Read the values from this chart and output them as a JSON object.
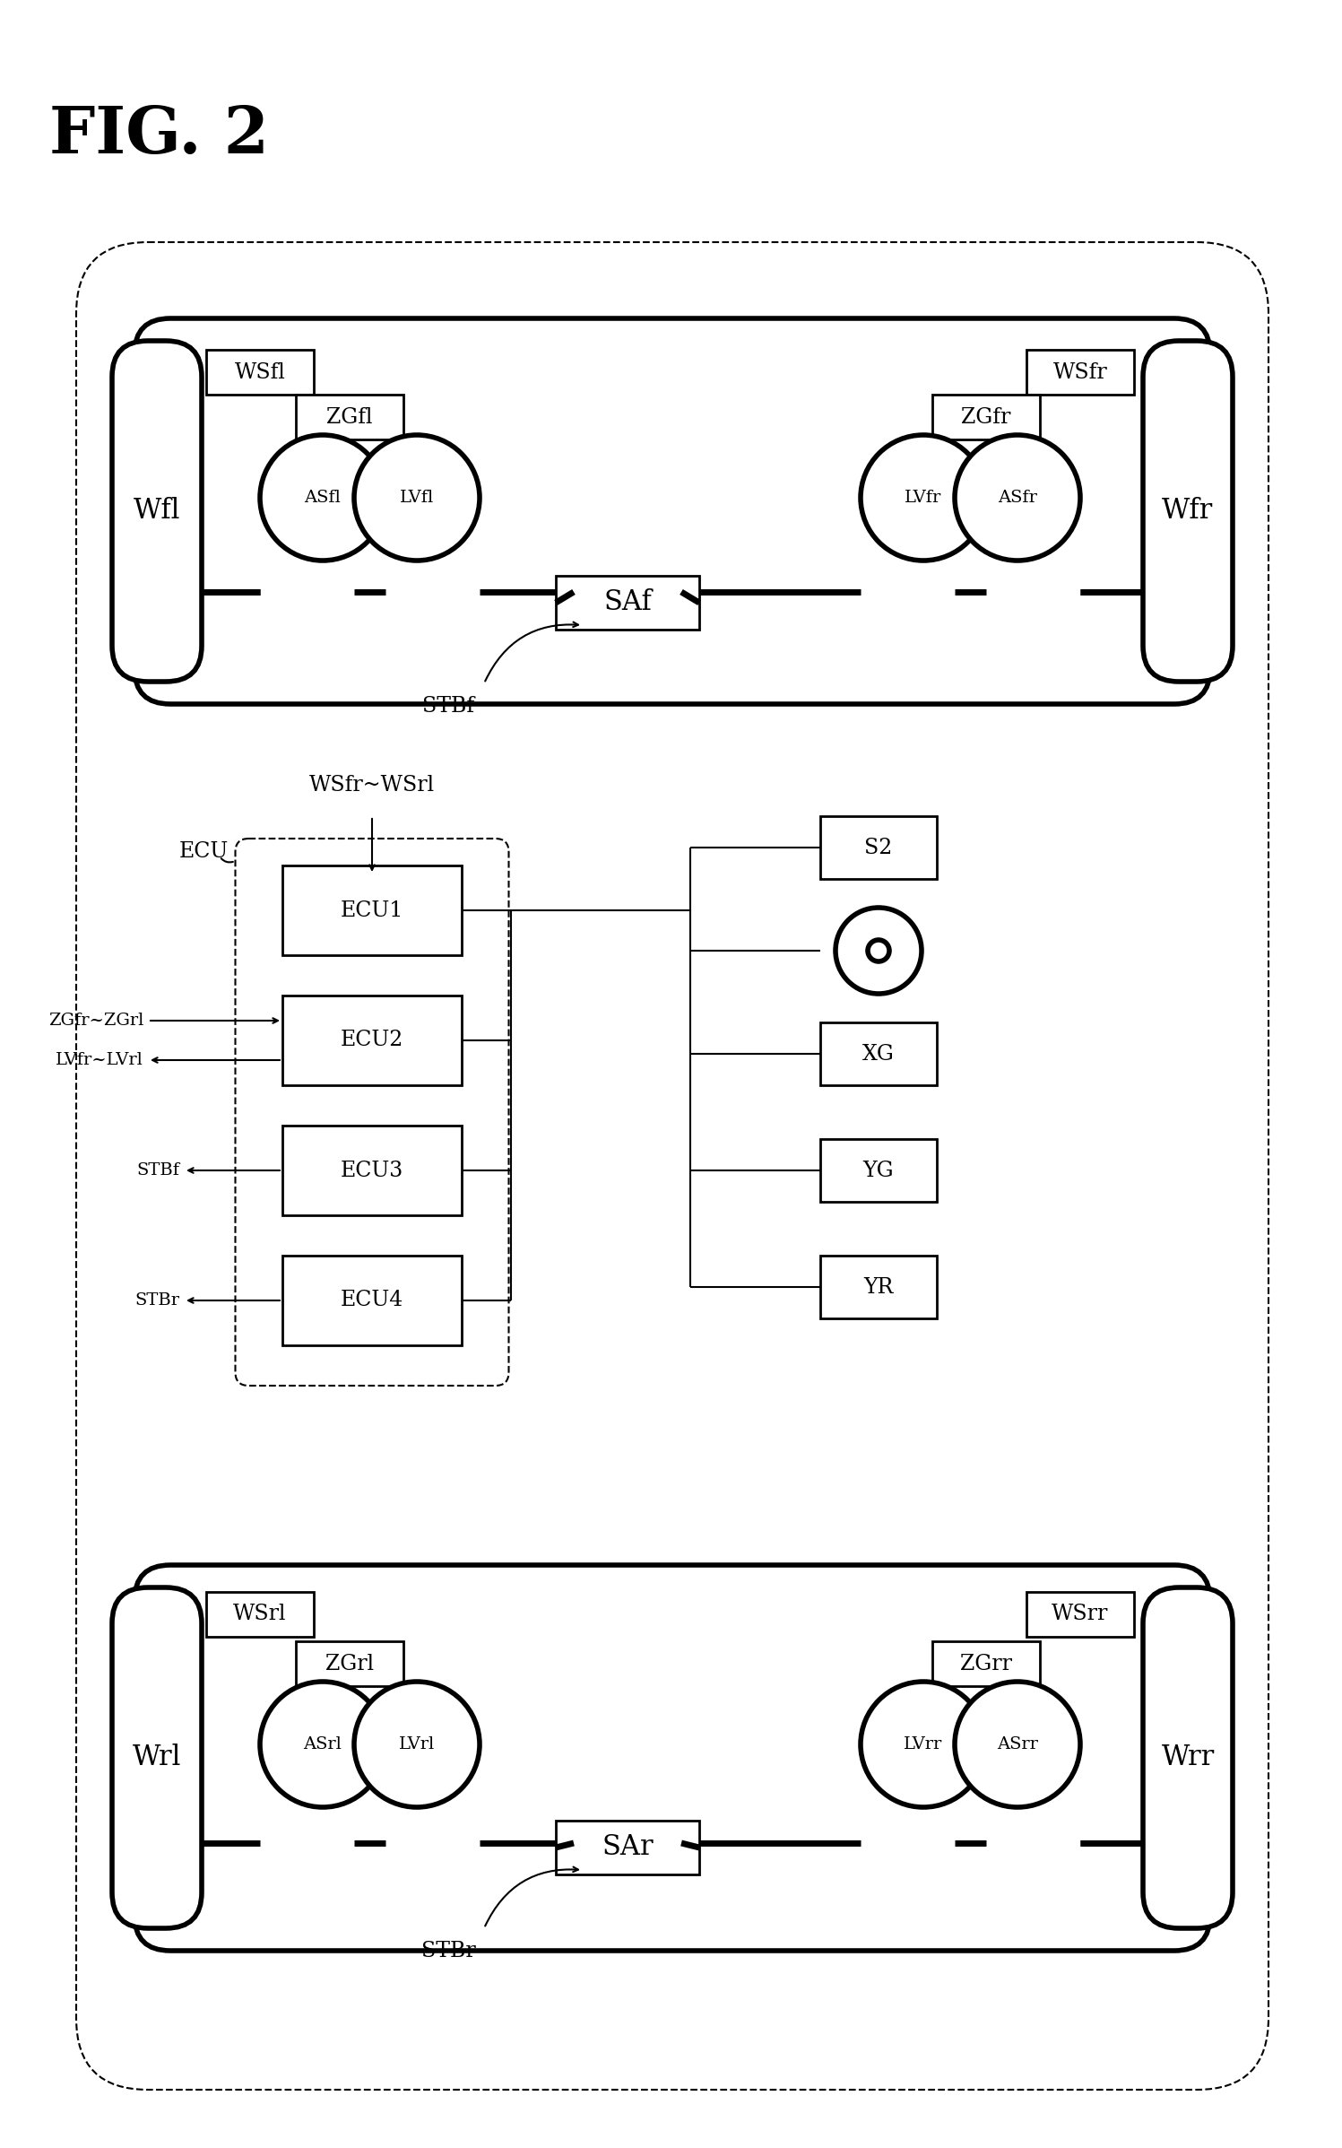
{
  "fig_width": 14.97,
  "fig_height": 23.95,
  "bg_color": "#ffffff",
  "labels": {
    "fig_title": "FIG. 2",
    "Wfl": "Wfl",
    "Wfr": "Wfr",
    "Wrl": "Wrl",
    "Wrr": "Wrr",
    "ASfl": "ASfl",
    "LVfl": "LVfl",
    "ASfr": "ASfr",
    "LVfr": "LVfr",
    "ASrl": "ASrl",
    "LVrl": "LVrl",
    "ASrr": "ASrr",
    "LVrr": "LVrr",
    "WSfl": "WSfl",
    "ZGfl": "ZGfl",
    "WSfr": "WSfr",
    "ZGfr": "ZGfr",
    "WSrl": "WSrl",
    "ZGrl": "ZGrl",
    "WSrr": "WSrr",
    "ZGrr": "ZGrr",
    "SAf": "SAf",
    "SAr": "SAr",
    "STBf": "STBf",
    "STBr": "STBr",
    "ECU": "ECU",
    "ECU1": "ECU1",
    "ECU2": "ECU2",
    "ECU3": "ECU3",
    "ECU4": "ECU4",
    "S2": "S2",
    "XG": "XG",
    "YG": "YG",
    "YR": "YR",
    "WSfr_WSrl": "WSfr~WSrl",
    "ZGfr_ZGrl": "ZGfr~ZGrl",
    "LVfr_LVrl": "LVfr~LVrl",
    "STBf_label": "STBf",
    "STBr_label": "STBr"
  }
}
